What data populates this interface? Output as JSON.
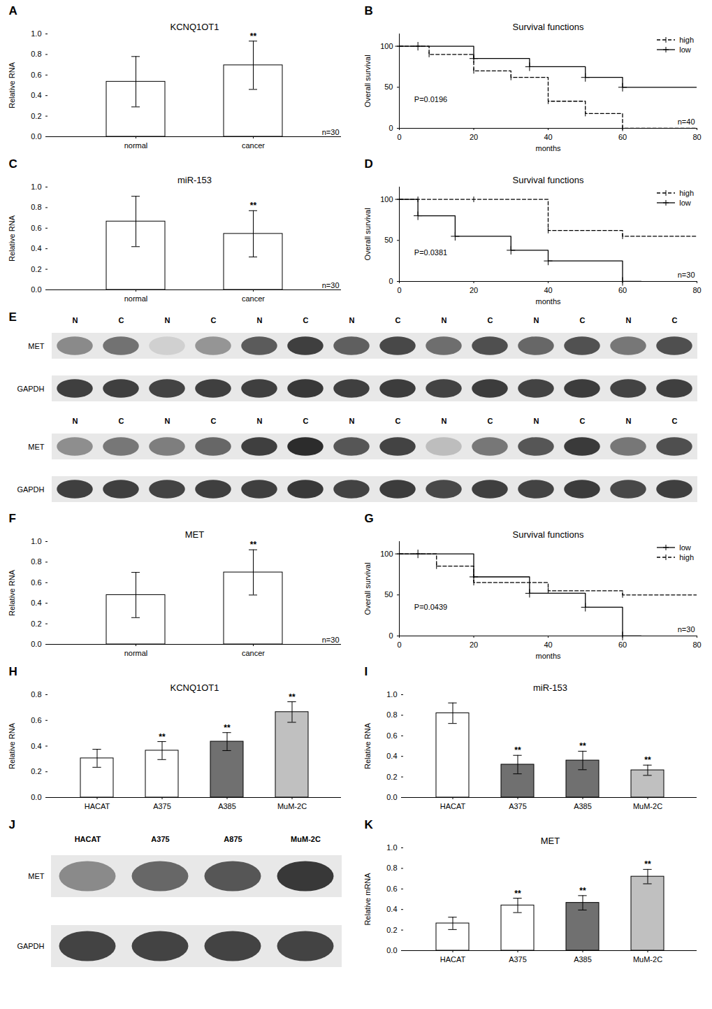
{
  "chart_data": [
    {
      "type": "bar",
      "panel_label": "A",
      "title": "KCNQ1OT1",
      "categories": [
        "normal",
        "cancer"
      ],
      "values": [
        0.535,
        0.695
      ],
      "errors": [
        0.245,
        0.235
      ],
      "colors": [
        "white",
        "white"
      ],
      "ylabel": "Relative RNA",
      "ylim": [
        0,
        1.0
      ],
      "yticks": [
        {
          "value": 0,
          "label": "0.0"
        },
        0.2,
        0.4,
        0.6,
        0.8,
        {
          "value": 1,
          "label": "1.0"
        }
      ],
      "annotations": [
        {
          "text": "**",
          "category": "cancer"
        },
        {
          "text": "n=30"
        }
      ],
      "grid": false,
      "legend": false
    },
    {
      "type": "step",
      "panel_label": "B",
      "title": "Survival functions",
      "xlabel": "months",
      "ylabel": "Overall survival",
      "xlim": [
        0,
        80
      ],
      "ylim": [
        0,
        115
      ],
      "xticks": [
        0,
        20,
        40,
        60,
        80
      ],
      "yticks": [
        0,
        50,
        100
      ],
      "series": [
        {
          "name": "high",
          "color": "black",
          "line_style": "dashed",
          "marker": "vline",
          "x": [
            0,
            8,
            8,
            20,
            20,
            30,
            30,
            40,
            40,
            50,
            50,
            60,
            60,
            80
          ],
          "values": [
            100,
            100,
            90,
            90,
            70,
            70,
            62,
            62,
            33,
            33,
            18,
            18,
            0,
            0
          ]
        },
        {
          "name": "low",
          "color": "black",
          "line_style": "solid",
          "marker": "plus",
          "x": [
            0,
            5,
            5,
            20,
            20,
            35,
            35,
            50,
            50,
            60,
            60,
            80
          ],
          "values": [
            100,
            100,
            100,
            100,
            85,
            85,
            75,
            75,
            62,
            62,
            50,
            50
          ]
        }
      ],
      "annotations": [
        {
          "text": "P=0.0196"
        },
        {
          "text": "n=40"
        }
      ],
      "legend": "top-right",
      "grid": false
    },
    {
      "type": "bar",
      "panel_label": "C",
      "title": "miR-153",
      "categories": [
        "normal",
        "cancer"
      ],
      "values": [
        0.665,
        0.545
      ],
      "errors": [
        0.245,
        0.225
      ],
      "colors": [
        "white",
        "white"
      ],
      "ylabel": "Relative RNA",
      "ylim": [
        0,
        1.0
      ],
      "yticks": [
        {
          "value": 0,
          "label": "0.0"
        },
        0.2,
        0.4,
        0.6,
        0.8,
        {
          "value": 1,
          "label": "1.0"
        }
      ],
      "annotations": [
        {
          "text": "**",
          "category": "cancer"
        },
        {
          "text": "n=30"
        }
      ],
      "grid": false,
      "legend": false
    },
    {
      "type": "step",
      "panel_label": "D",
      "title": "Survival functions",
      "xlabel": "months",
      "ylabel": "Overall survival",
      "xlim": [
        0,
        80
      ],
      "ylim": [
        0,
        115
      ],
      "xticks": [
        0,
        20,
        40,
        60,
        80
      ],
      "yticks": [
        0,
        50,
        100
      ],
      "series": [
        {
          "name": "high",
          "color": "black",
          "line_style": "dashed",
          "marker": "vline",
          "x": [
            0,
            5,
            5,
            20,
            20,
            40,
            40,
            60,
            60,
            80
          ],
          "values": [
            100,
            100,
            100,
            100,
            100,
            100,
            62,
            62,
            55,
            55
          ]
        },
        {
          "name": "low",
          "color": "black",
          "line_style": "solid",
          "marker": "plus",
          "x": [
            0,
            5,
            5,
            15,
            15,
            30,
            30,
            40,
            40,
            60,
            60,
            65
          ],
          "values": [
            100,
            100,
            80,
            80,
            55,
            55,
            38,
            38,
            25,
            25,
            0,
            0
          ]
        }
      ],
      "annotations": [
        {
          "text": "P=0.0381"
        },
        {
          "text": "n=30"
        }
      ],
      "legend": "top-right",
      "grid": false
    },
    {
      "type": "heatmap",
      "panel_label": "E",
      "x": [
        "N",
        "C",
        "N",
        "C",
        "N",
        "C",
        "N",
        "C",
        "N",
        "C",
        "N",
        "C",
        "N",
        "C"
      ],
      "y": [
        "MET",
        "GAPDH"
      ],
      "cells": [
        [
          0.5,
          0.6,
          0.2,
          0.45,
          0.7,
          0.82,
          0.68,
          0.78,
          0.62,
          0.75,
          0.65,
          0.74,
          0.58,
          0.75
        ],
        [
          0.82,
          0.82,
          0.8,
          0.82,
          0.82,
          0.85,
          0.82,
          0.83,
          0.8,
          0.83,
          0.8,
          0.83,
          0.8,
          0.82
        ]
      ]
    },
    {
      "type": "heatmap",
      "x": [
        "N",
        "C",
        "N",
        "C",
        "N",
        "C",
        "N",
        "C",
        "N",
        "C",
        "N",
        "C",
        "N",
        "C"
      ],
      "y": [
        "MET",
        "GAPDH"
      ],
      "cells": [
        [
          0.48,
          0.58,
          0.55,
          0.65,
          0.82,
          0.9,
          0.72,
          0.8,
          0.28,
          0.58,
          0.72,
          0.84,
          0.58,
          0.75
        ],
        [
          0.82,
          0.82,
          0.8,
          0.82,
          0.82,
          0.85,
          0.8,
          0.83,
          0.78,
          0.82,
          0.8,
          0.83,
          0.78,
          0.82
        ]
      ]
    },
    {
      "type": "bar",
      "panel_label": "F",
      "title": "MET",
      "categories": [
        "normal",
        "cancer"
      ],
      "values": [
        0.48,
        0.7
      ],
      "errors": [
        0.22,
        0.22
      ],
      "colors": [
        "white",
        "white"
      ],
      "ylabel": "Relative RNA",
      "ylim": [
        0,
        1.0
      ],
      "yticks": [
        {
          "value": 0,
          "label": "0.0"
        },
        0.2,
        0.4,
        0.6,
        0.8,
        {
          "value": 1,
          "label": "1.0"
        }
      ],
      "annotations": [
        {
          "text": "**",
          "category": "cancer"
        },
        {
          "text": "n=30"
        }
      ],
      "grid": false,
      "legend": false
    },
    {
      "type": "step",
      "panel_label": "G",
      "title": "Survival functions",
      "xlabel": "months",
      "ylabel": "Overall survival",
      "xlim": [
        0,
        80
      ],
      "ylim": [
        0,
        115
      ],
      "xticks": [
        0,
        20,
        40,
        60,
        80
      ],
      "yticks": [
        0,
        50,
        100
      ],
      "series": [
        {
          "name": "low",
          "color": "black",
          "line_style": "solid",
          "marker": "plus",
          "x": [
            0,
            5,
            5,
            20,
            20,
            35,
            35,
            50,
            50,
            60,
            60,
            65
          ],
          "values": [
            100,
            100,
            100,
            100,
            72,
            72,
            52,
            52,
            35,
            35,
            0,
            0
          ]
        },
        {
          "name": "high",
          "color": "black",
          "line_style": "dashed",
          "marker": "vline",
          "x": [
            0,
            10,
            10,
            20,
            20,
            40,
            40,
            60,
            60,
            80
          ],
          "values": [
            100,
            100,
            85,
            85,
            65,
            65,
            55,
            55,
            50,
            50
          ]
        }
      ],
      "annotations": [
        {
          "text": "P=0.0439"
        },
        {
          "text": "n=30"
        }
      ],
      "legend": "top-right",
      "grid": false
    },
    {
      "type": "bar",
      "panel_label": "H",
      "title": "KCNQ1OT1",
      "categories": [
        "HACAT",
        "A375",
        "A385",
        "MuM-2C"
      ],
      "values": [
        0.305,
        0.365,
        0.435,
        0.665
      ],
      "errors": [
        0.07,
        0.07,
        0.07,
        0.08
      ],
      "colors": [
        "white",
        "white",
        "#707070",
        "#c0c0c0"
      ],
      "ylabel": "Relative RNA",
      "ylim": [
        0,
        0.8
      ],
      "yticks": [
        {
          "value": 0,
          "label": "0.0"
        },
        0.2,
        0.4,
        0.6,
        0.8
      ],
      "annotations": [
        {
          "text": "**",
          "category": "A375"
        },
        {
          "text": "**",
          "category": "A385"
        },
        {
          "text": "**",
          "category": "MuM-2C"
        }
      ],
      "grid": false,
      "legend": false
    },
    {
      "type": "bar",
      "panel_label": "I",
      "title": "miR-153",
      "categories": [
        "HACAT",
        "A375",
        "A385",
        "MuM-2C"
      ],
      "values": [
        0.82,
        0.32,
        0.36,
        0.265
      ],
      "errors": [
        0.1,
        0.09,
        0.09,
        0.05
      ],
      "colors": [
        "white",
        "#707070",
        "#707070",
        "#c0c0c0"
      ],
      "ylabel": "Relative RNA",
      "ylim": [
        0,
        1.0
      ],
      "yticks": [
        {
          "value": 0,
          "label": "0.0"
        },
        0.2,
        0.4,
        0.6,
        0.8,
        {
          "value": 1,
          "label": "1.0"
        }
      ],
      "annotations": [
        {
          "text": "**",
          "category": "A375"
        },
        {
          "text": "**",
          "category": "A385"
        },
        {
          "text": "**",
          "category": "MuM-2C"
        }
      ],
      "grid": false,
      "legend": false
    },
    {
      "type": "heatmap",
      "panel_label": "J",
      "x": [
        "HACAT",
        "A375",
        "A875",
        "MuM-2C"
      ],
      "y": [
        "MET",
        "GAPDH"
      ],
      "cells": [
        [
          0.5,
          0.65,
          0.72,
          0.85
        ],
        [
          0.8,
          0.8,
          0.8,
          0.8
        ]
      ]
    },
    {
      "type": "bar",
      "panel_label": "K",
      "title": "MET",
      "categories": [
        "HACAT",
        "A375",
        "A385",
        "MuM-2C"
      ],
      "values": [
        0.265,
        0.44,
        0.465,
        0.72
      ],
      "errors": [
        0.06,
        0.07,
        0.07,
        0.07
      ],
      "colors": [
        "white",
        "white",
        "#707070",
        "#c0c0c0"
      ],
      "ylabel": "Relative mRNA",
      "ylim": [
        0,
        1.0
      ],
      "yticks": [
        {
          "value": 0,
          "label": "0.0"
        },
        0.2,
        0.4,
        0.6,
        0.8,
        {
          "value": 1,
          "label": "1.0"
        }
      ],
      "annotations": [
        {
          "text": "**",
          "category": "A375"
        },
        {
          "text": "**",
          "category": "A385"
        },
        {
          "text": "**",
          "category": "MuM-2C"
        }
      ],
      "grid": false,
      "legend": false
    }
  ]
}
